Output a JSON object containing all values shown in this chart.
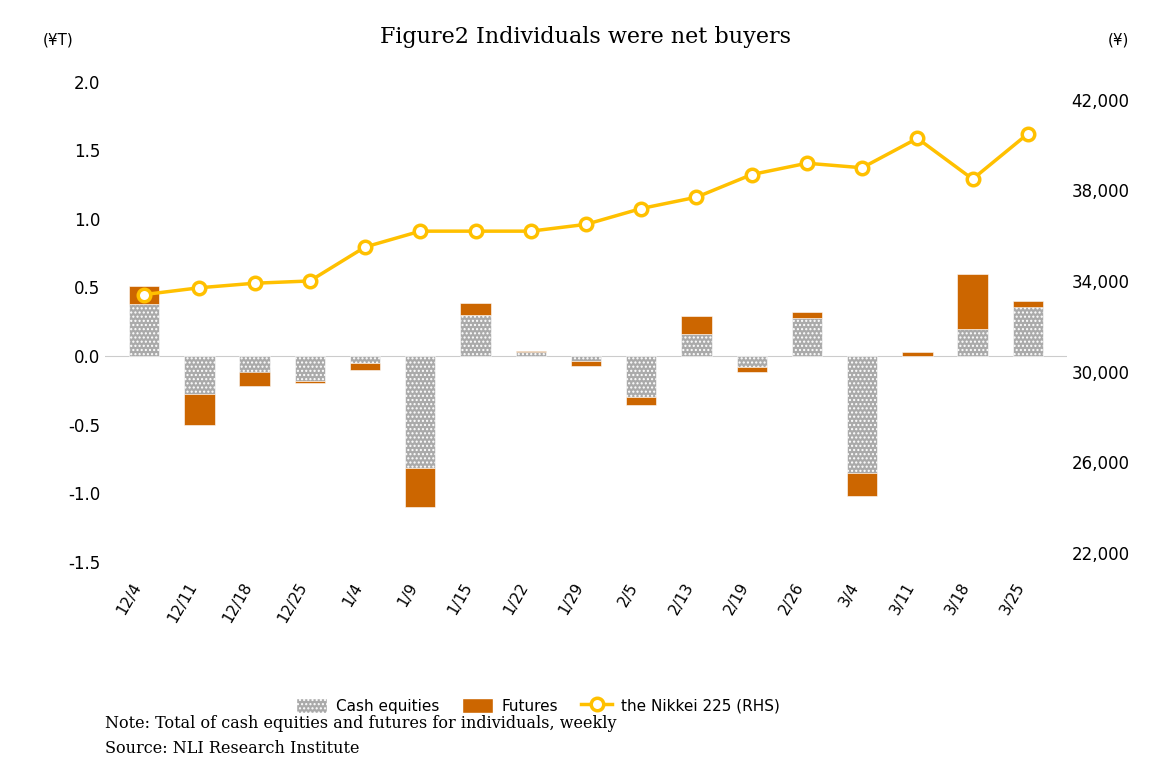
{
  "title": "Figure2 Individuals were net buyers",
  "categories": [
    "12/4",
    "12/11",
    "12/18",
    "12/25",
    "1/4",
    "1/9",
    "1/15",
    "1/22",
    "1/29",
    "2/5",
    "2/13",
    "2/19",
    "2/26",
    "3/4",
    "3/11",
    "3/18",
    "3/25"
  ],
  "cash_equities": [
    0.38,
    -0.28,
    -0.22,
    -0.18,
    -0.05,
    -0.82,
    0.3,
    0.04,
    -0.04,
    -0.3,
    0.16,
    -0.08,
    0.28,
    -0.85,
    0.03,
    0.2,
    0.4
  ],
  "futures": [
    0.13,
    -0.22,
    0.1,
    -0.02,
    -0.05,
    -0.28,
    0.09,
    -0.01,
    -0.03,
    -0.06,
    0.13,
    -0.04,
    0.04,
    -0.17,
    -0.03,
    0.4,
    -0.04
  ],
  "nikkei": [
    33400,
    33700,
    33900,
    34000,
    35500,
    36200,
    36200,
    36200,
    36500,
    37200,
    37700,
    38700,
    39200,
    39000,
    40300,
    38500,
    40500
  ],
  "ylim_left": [
    -1.6,
    2.1
  ],
  "ylim_right": [
    21000,
    43400
  ],
  "left_ticks": [
    -1.5,
    -1.0,
    -0.5,
    0.0,
    0.5,
    1.0,
    1.5,
    2.0
  ],
  "right_ticks": [
    22000,
    26000,
    30000,
    34000,
    38000,
    42000
  ],
  "ylabel_left": "(¥T)",
  "ylabel_right": "(¥)",
  "cash_color": "#aaaaaa",
  "futures_color": "#CC6600",
  "nikkei_color": "#FFC000",
  "background_color": "#ffffff",
  "note_line1": "Note: Total of cash equities and futures for individuals, weekly",
  "note_line2": "Source: NLI Research Institute",
  "bar_width": 0.55
}
